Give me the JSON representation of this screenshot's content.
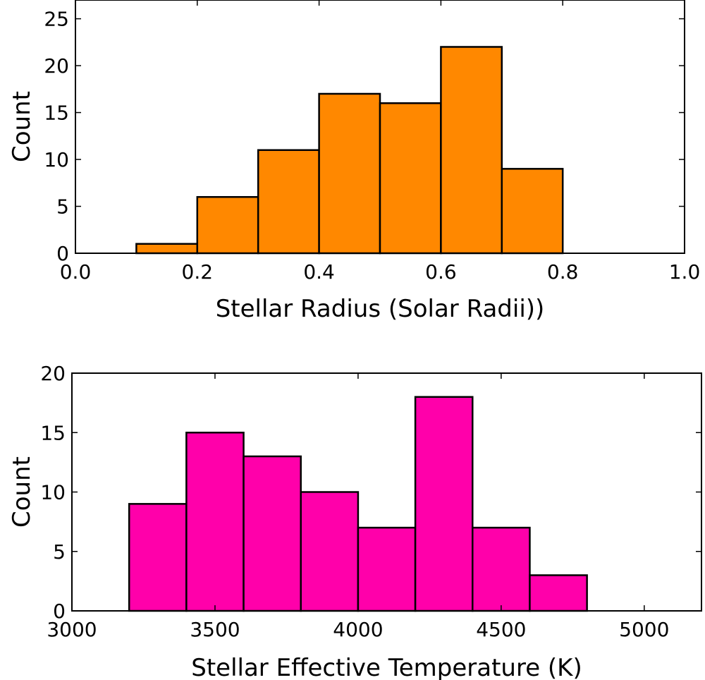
{
  "chart_data": [
    {
      "type": "bar",
      "title": "",
      "xlabel": "Stellar Radius (Solar Radii))",
      "ylabel": "Count",
      "xlim": [
        0.0,
        1.0
      ],
      "ylim": [
        0,
        27
      ],
      "xticks": [
        "0.0",
        "0.2",
        "0.4",
        "0.6",
        "0.8",
        "1.0"
      ],
      "xtick_values": [
        0.0,
        0.2,
        0.4,
        0.6,
        0.8,
        1.0
      ],
      "yticks": [
        "0",
        "5",
        "10",
        "15",
        "20",
        "25"
      ],
      "ytick_values": [
        0,
        5,
        10,
        15,
        20,
        25
      ],
      "bin_edges": [
        0.1,
        0.2,
        0.3,
        0.4,
        0.5,
        0.6,
        0.7,
        0.8
      ],
      "values": [
        1,
        6,
        11,
        17,
        16,
        22,
        9
      ],
      "color": "#ff8800",
      "grid": false
    },
    {
      "type": "bar",
      "title": "",
      "xlabel": "Stellar Effective Temperature (K)",
      "ylabel": "Count",
      "xlim": [
        3000,
        5200
      ],
      "ylim": [
        0,
        20
      ],
      "xticks": [
        "3000",
        "3500",
        "4000",
        "4500",
        "5000"
      ],
      "xtick_values": [
        3000,
        3500,
        4000,
        4500,
        5000
      ],
      "yticks": [
        "0",
        "5",
        "10",
        "15",
        "20"
      ],
      "ytick_values": [
        0,
        5,
        10,
        15,
        20
      ],
      "bin_edges": [
        3200,
        3400,
        3600,
        3800,
        4000,
        4200,
        4400,
        4600,
        4800
      ],
      "values": [
        9,
        15,
        13,
        10,
        7,
        18,
        7,
        3
      ],
      "color": "#ff00aa",
      "grid": false
    }
  ]
}
